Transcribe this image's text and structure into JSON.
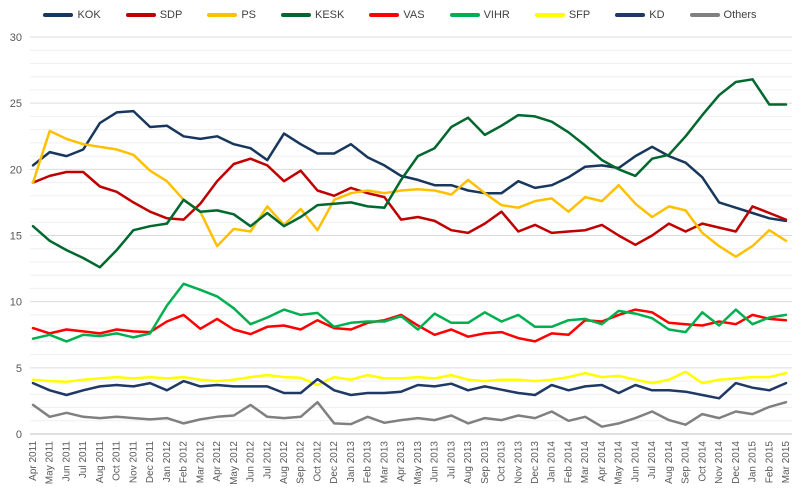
{
  "chart_data": {
    "type": "line",
    "title": "",
    "xlabel": "",
    "ylabel": "",
    "ylim": [
      0,
      30
    ],
    "y_ticks": [
      0,
      5,
      10,
      15,
      20,
      25,
      30
    ],
    "grid": "horizontal gridlines every 1 unit, slightly darker every 5 units",
    "legend_position": "top-center",
    "categories": [
      "Apr 2011",
      "May 2011",
      "Jun 2011",
      "Jul 2011",
      "Aug 2011",
      "Oct 2011",
      "Nov 2011",
      "Dec 2011",
      "Jan 2012",
      "Feb 2012",
      "Mar 2012",
      "Apr 2012",
      "May 2012",
      "Jun 2012",
      "Jul 2012",
      "Aug 2012",
      "Sep 2012",
      "Oct 2012",
      "Dec 2012",
      "Jan 2013",
      "Feb 2013",
      "Mar 2013",
      "Apr 2013",
      "May 2013",
      "Jun 2013",
      "Jul 2013",
      "Aug 2013",
      "Sep 2013",
      "Oct 2013",
      "Nov 2013",
      "Dec 2013",
      "Jan 2014",
      "Feb 2014",
      "Mar 2014",
      "Apr 2014",
      "May 2014",
      "Jun 2014",
      "Jul 2014",
      "Aug 2014",
      "Sep 2014",
      "Oct 2014",
      "Nov 2014",
      "Dec 2014",
      "Jan 2015",
      "Feb 2015",
      "Mar 2015"
    ],
    "series": [
      {
        "name": "KOK",
        "color": "#17375D",
        "values": [
          20.3,
          21.3,
          21.0,
          21.5,
          23.5,
          24.3,
          24.4,
          23.2,
          23.3,
          22.5,
          22.3,
          22.5,
          21.9,
          21.6,
          20.7,
          22.7,
          21.9,
          21.2,
          21.2,
          21.9,
          20.9,
          20.3,
          19.5,
          19.2,
          18.8,
          18.8,
          18.4,
          18.2,
          18.2,
          19.1,
          18.6,
          18.8,
          19.4,
          20.2,
          20.3,
          20.1,
          21.0,
          21.7,
          21.0,
          20.5,
          19.4,
          17.5,
          17.1,
          16.7,
          16.3,
          16.1
        ]
      },
      {
        "name": "SDP",
        "color": "#C00000",
        "values": [
          19.0,
          19.5,
          19.8,
          19.8,
          18.7,
          18.3,
          17.5,
          16.8,
          16.3,
          16.2,
          17.4,
          19.1,
          20.4,
          20.8,
          20.3,
          19.1,
          19.9,
          18.4,
          18.0,
          18.6,
          18.2,
          17.9,
          16.2,
          16.4,
          16.1,
          15.4,
          15.2,
          15.9,
          16.8,
          15.3,
          15.8,
          15.2,
          15.3,
          15.4,
          15.8,
          15.0,
          14.3,
          15.0,
          15.9,
          15.3,
          15.9,
          15.6,
          15.3,
          17.2,
          16.7,
          16.2
        ]
      },
      {
        "name": "PS",
        "color": "#FFC000",
        "values": [
          19.0,
          22.9,
          22.3,
          21.9,
          21.7,
          21.5,
          21.1,
          19.9,
          19.1,
          17.7,
          16.8,
          14.2,
          15.5,
          15.3,
          17.2,
          15.8,
          17.0,
          15.4,
          17.7,
          18.2,
          18.4,
          18.2,
          18.4,
          18.5,
          18.4,
          18.1,
          19.2,
          18.2,
          17.3,
          17.1,
          17.6,
          17.8,
          16.8,
          17.9,
          17.6,
          18.8,
          17.4,
          16.4,
          17.2,
          16.9,
          15.2,
          14.2,
          13.4,
          14.2,
          15.4,
          14.6
        ]
      },
      {
        "name": "KESK",
        "color": "#00682F",
        "values": [
          15.7,
          14.6,
          13.9,
          13.3,
          12.6,
          13.9,
          15.4,
          15.7,
          15.9,
          17.7,
          16.8,
          16.9,
          16.6,
          15.7,
          16.7,
          15.7,
          16.4,
          17.3,
          17.4,
          17.5,
          17.2,
          17.1,
          19.2,
          21.0,
          21.6,
          23.2,
          23.9,
          22.6,
          23.3,
          24.1,
          24.0,
          23.6,
          22.8,
          21.8,
          20.7,
          20.0,
          19.5,
          20.8,
          21.1,
          22.5,
          24.1,
          25.6,
          26.6,
          26.8,
          24.9,
          24.9
        ]
      },
      {
        "name": "VAS",
        "color": "#FF0000",
        "values": [
          8.0,
          7.6,
          7.9,
          7.75,
          7.6,
          7.9,
          7.75,
          7.7,
          8.5,
          9.0,
          7.95,
          8.7,
          7.9,
          7.55,
          8.1,
          8.2,
          7.9,
          8.6,
          8.0,
          7.9,
          8.4,
          8.6,
          9.0,
          8.2,
          7.5,
          7.9,
          7.35,
          7.6,
          7.7,
          7.25,
          7.0,
          7.6,
          7.5,
          8.6,
          8.5,
          9.0,
          9.4,
          9.2,
          8.4,
          8.3,
          8.2,
          8.5,
          8.3,
          9.0,
          8.7,
          8.6
        ]
      },
      {
        "name": "VIHR",
        "color": "#00B050",
        "values": [
          7.2,
          7.5,
          7.0,
          7.5,
          7.4,
          7.6,
          7.3,
          7.6,
          9.7,
          11.35,
          10.9,
          10.4,
          9.5,
          8.3,
          8.8,
          9.4,
          9.0,
          9.15,
          8.1,
          8.4,
          8.5,
          8.5,
          8.9,
          7.9,
          9.1,
          8.4,
          8.4,
          9.2,
          8.5,
          9.0,
          8.1,
          8.1,
          8.6,
          8.7,
          8.3,
          9.3,
          9.1,
          8.75,
          7.9,
          7.7,
          9.2,
          8.2,
          9.4,
          8.3,
          8.8,
          9.0
        ]
      },
      {
        "name": "SFP",
        "color": "#FFFF00",
        "values": [
          4.1,
          4.0,
          3.95,
          4.1,
          4.2,
          4.3,
          4.2,
          4.3,
          4.2,
          4.3,
          4.1,
          4.0,
          4.1,
          4.3,
          4.45,
          4.3,
          4.25,
          3.7,
          4.3,
          4.1,
          4.45,
          4.2,
          4.2,
          4.3,
          4.2,
          4.45,
          4.1,
          4.0,
          4.1,
          4.1,
          4.0,
          4.1,
          4.3,
          4.6,
          4.3,
          4.4,
          4.1,
          3.85,
          4.1,
          4.7,
          3.85,
          4.1,
          4.2,
          4.3,
          4.3,
          4.6
        ]
      },
      {
        "name": "KD",
        "color": "#1F3864",
        "values": [
          3.85,
          3.3,
          2.95,
          3.3,
          3.6,
          3.7,
          3.6,
          3.85,
          3.3,
          4.0,
          3.6,
          3.7,
          3.6,
          3.6,
          3.6,
          3.1,
          3.1,
          4.15,
          3.3,
          2.95,
          3.1,
          3.1,
          3.2,
          3.7,
          3.6,
          3.8,
          3.3,
          3.6,
          3.35,
          3.1,
          2.95,
          3.7,
          3.3,
          3.6,
          3.7,
          3.1,
          3.7,
          3.3,
          3.3,
          3.2,
          2.95,
          2.7,
          3.85,
          3.5,
          3.3,
          3.85
        ]
      },
      {
        "name": "Others",
        "color": "#808080",
        "values": [
          2.2,
          1.3,
          1.6,
          1.3,
          1.2,
          1.3,
          1.2,
          1.1,
          1.2,
          0.8,
          1.1,
          1.3,
          1.4,
          2.2,
          1.3,
          1.2,
          1.3,
          2.4,
          0.8,
          0.75,
          1.3,
          0.85,
          1.05,
          1.2,
          1.05,
          1.4,
          0.8,
          1.2,
          1.05,
          1.4,
          1.2,
          1.7,
          1.0,
          1.3,
          0.55,
          0.8,
          1.2,
          1.7,
          1.05,
          0.7,
          1.5,
          1.2,
          1.7,
          1.5,
          2.05,
          2.4
        ]
      }
    ]
  },
  "style": {
    "background": "#FFFFFF",
    "axis_text_color": "#595959",
    "legend_text_color": "#404040",
    "gridline_minor_color": "#EFEFEF",
    "gridline_major_color": "#DCDCDC",
    "axis_line_color": "#BFBFBF",
    "line_width": 2.5,
    "y_label_font_size": 11,
    "x_label_font_size": 10
  }
}
